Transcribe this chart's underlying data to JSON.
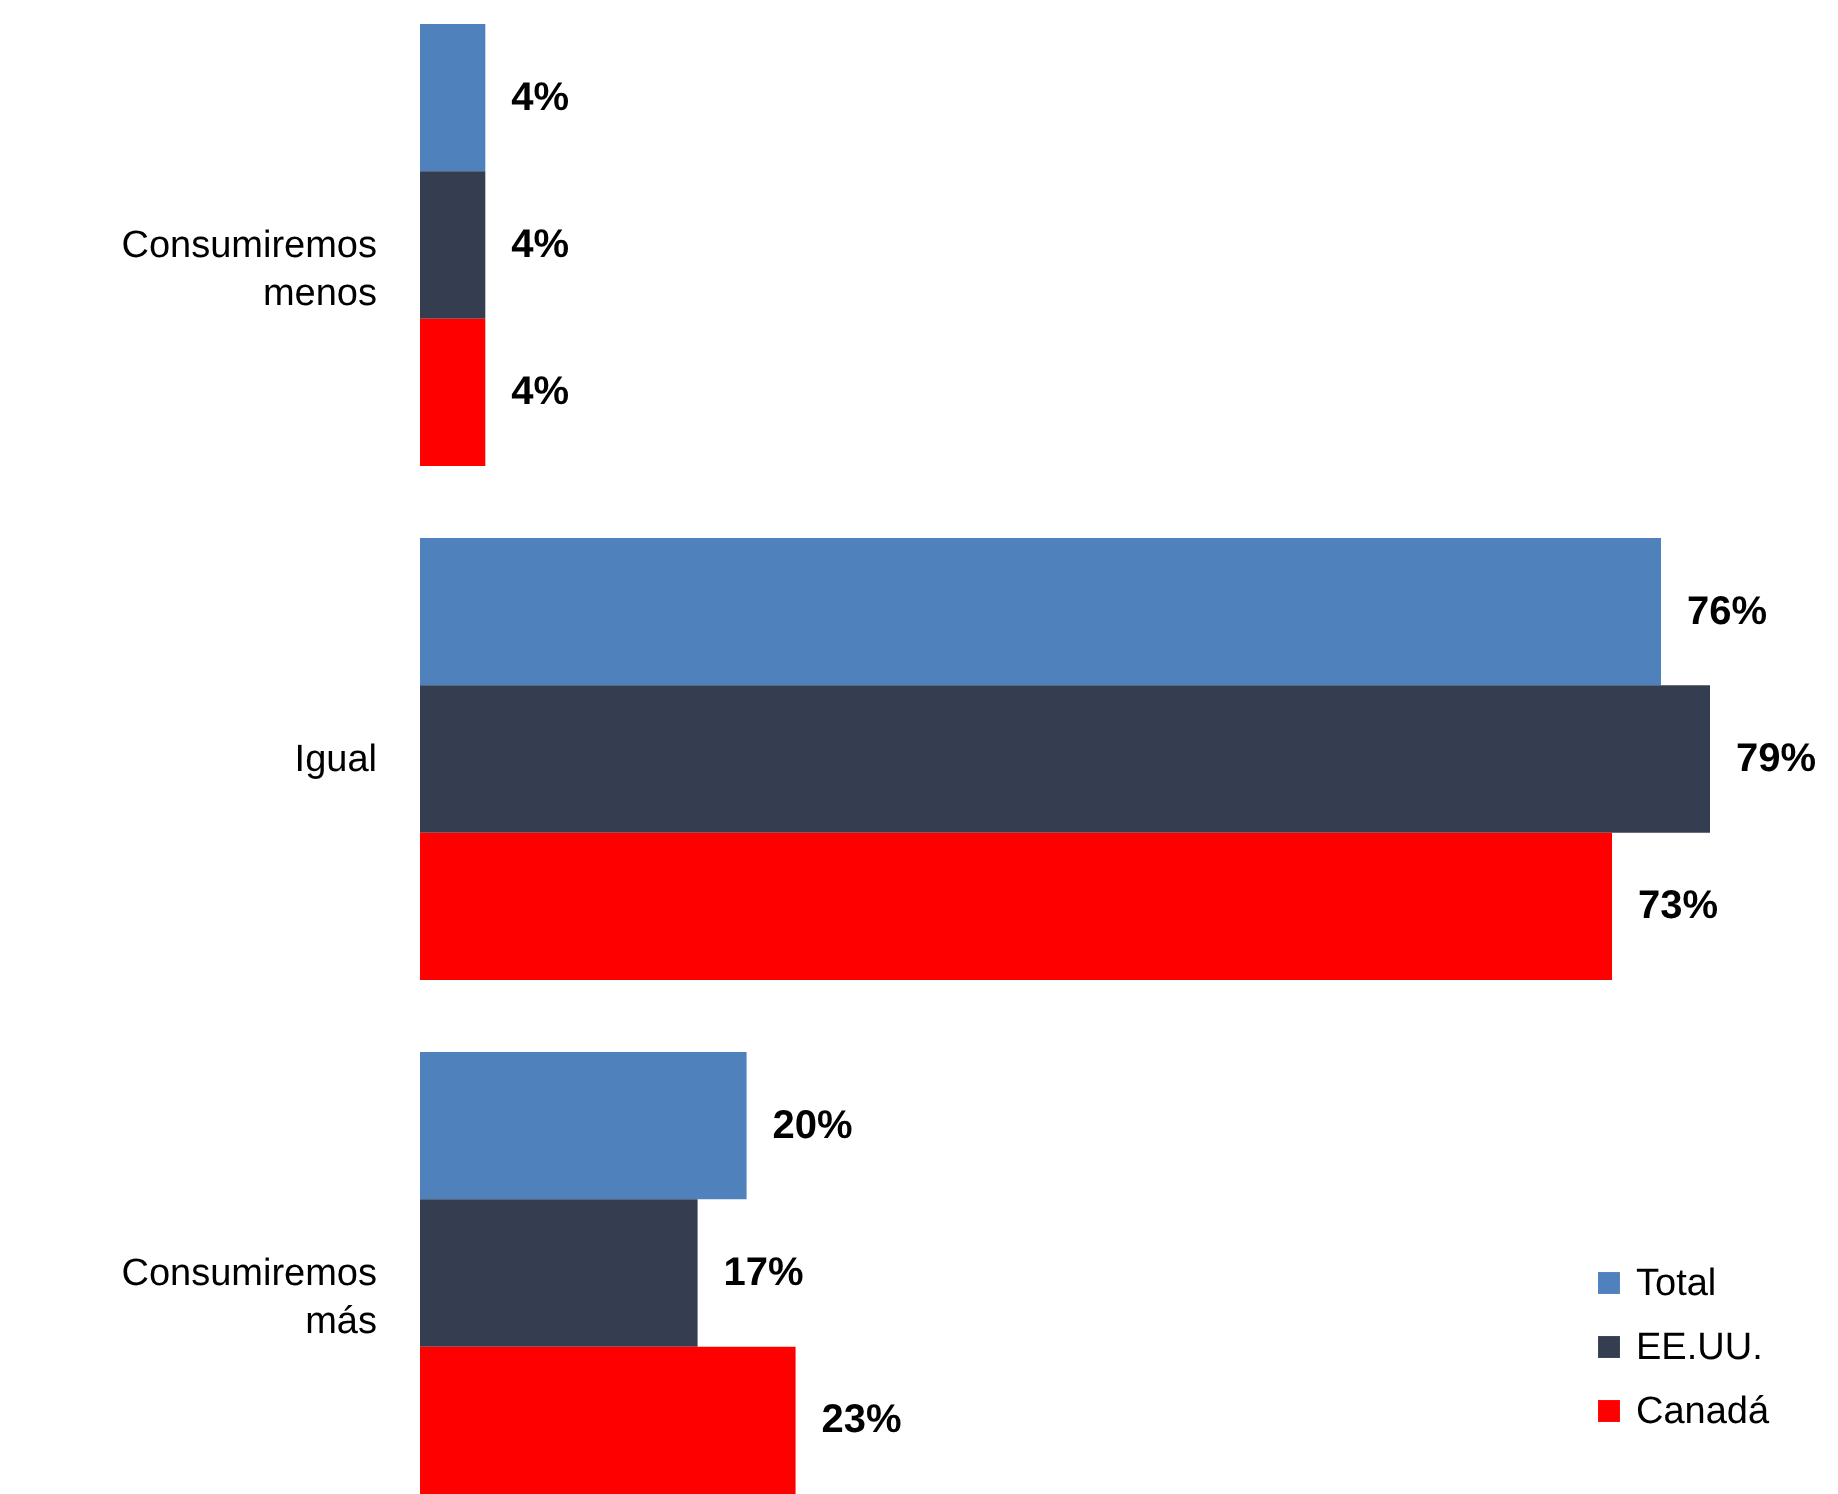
{
  "chart_data": {
    "type": "bar",
    "orientation": "horizontal",
    "categories": [
      "Consumiremos menos",
      "Igual",
      "Consumiremos más"
    ],
    "series": [
      {
        "name": "Total",
        "color": "#4f81bd",
        "values": [
          4,
          76,
          20
        ],
        "value_labels": [
          "4%",
          "76%",
          "20%"
        ]
      },
      {
        "name": "EE.UU.",
        "color": "#353e50",
        "values": [
          4,
          79,
          17
        ],
        "value_labels": [
          "4%",
          "79%",
          "17%"
        ]
      },
      {
        "name": "Canadá",
        "color": "#ff0000",
        "values": [
          4,
          73,
          23
        ],
        "value_labels": [
          "4%",
          "73%",
          "23%"
        ]
      }
    ],
    "legend": "bottom right",
    "grid": false
  }
}
